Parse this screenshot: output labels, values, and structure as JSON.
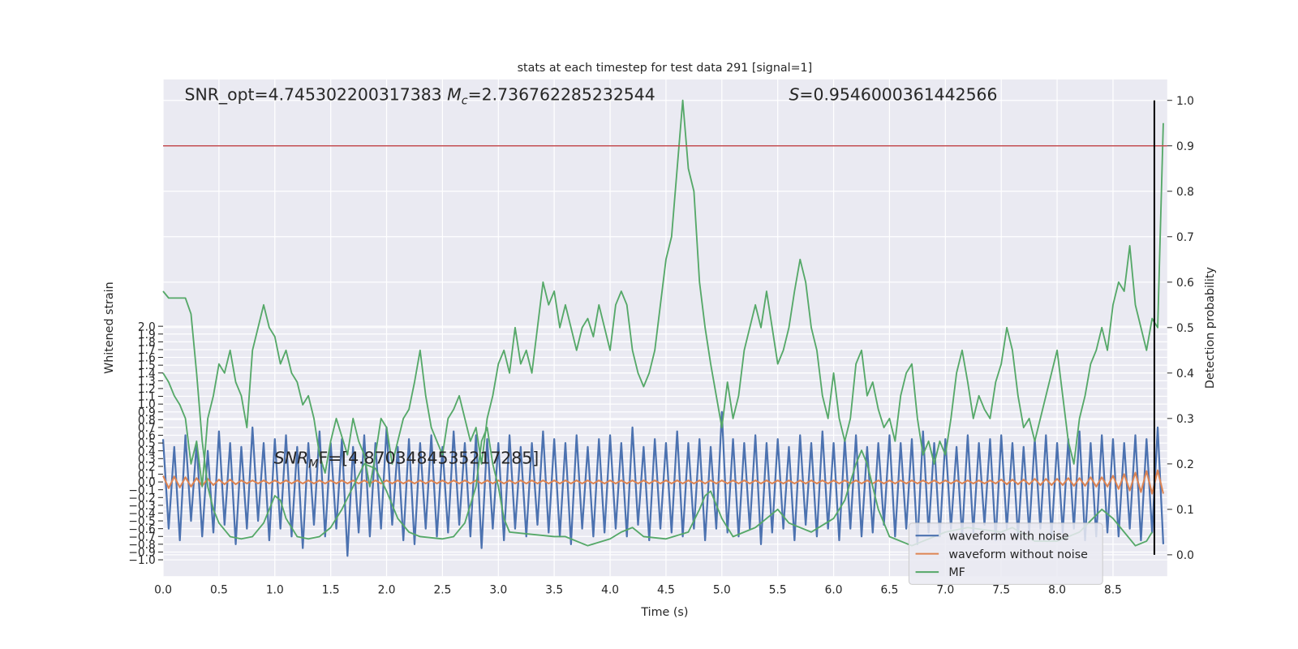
{
  "chart_data": {
    "type": "line",
    "title": "stats at each timestep for test data 291 [signal=1]",
    "xlabel": "Time (s)",
    "ylabel": "Whitened strain",
    "y2label": "Detection probability",
    "annotations": [
      [
        "SNR_opt=4.745302200317383 ",
        "M",
        "c",
        "=2.736762285232544"
      ],
      [
        "S",
        "=0.9546000361442566"
      ],
      [
        "SNR",
        "M",
        "F=[4.8703484535217285]"
      ]
    ],
    "grid": true,
    "legend": "lower right",
    "xlim": [
      0,
      8.985
    ],
    "ylim": [
      -1.21,
      5.17
    ],
    "y2lim": [
      -0.047,
      1.046
    ],
    "xticks": [
      {
        "value": 0,
        "label": "0.0"
      },
      0.5,
      {
        "value": 1,
        "label": "1.0"
      },
      1.5,
      {
        "value": 2,
        "label": "2.0"
      },
      2.5,
      {
        "value": 3,
        "label": "3.0"
      },
      3.5,
      {
        "value": 4,
        "label": "4.0"
      },
      4.5,
      {
        "value": 5,
        "label": "5.0"
      },
      5.5,
      {
        "value": 6,
        "label": "6.0"
      },
      6.5,
      {
        "value": 7,
        "label": "7.0"
      },
      7.5,
      {
        "value": 8,
        "label": "8.0"
      },
      8.5
    ],
    "yticks": [
      {
        "value": -1,
        "label": "−1.0"
      },
      {
        "value": -0.9,
        "label": "−0.9"
      },
      {
        "value": -0.8,
        "label": "−0.8"
      },
      {
        "value": -0.7,
        "label": "−0.7"
      },
      {
        "value": -0.6,
        "label": "−0.6"
      },
      {
        "value": -0.5,
        "label": "−0.5"
      },
      {
        "value": -0.4,
        "label": "−0.4"
      },
      {
        "value": -0.3,
        "label": "−0.3"
      },
      {
        "value": -0.2,
        "label": "−0.2"
      },
      {
        "value": -0.1,
        "label": "−0.1"
      },
      {
        "value": 0,
        "label": "0.0"
      },
      0.1,
      0.2,
      0.3,
      0.4,
      0.5,
      0.6,
      0.7,
      0.8,
      0.9,
      {
        "value": 1,
        "label": "1.0"
      },
      1.1,
      1.2,
      1.3,
      1.4,
      1.5,
      1.6,
      1.7,
      1.8,
      1.9,
      {
        "value": 2,
        "label": "2.0"
      }
    ],
    "y2ticks": [
      {
        "value": 0,
        "label": "0.0"
      },
      0.1,
      0.2,
      0.3,
      0.4,
      0.5,
      0.6,
      0.7,
      0.8,
      0.9,
      {
        "value": 1,
        "label": "1.0"
      }
    ],
    "threshold": {
      "value": 0.9,
      "axis": "y2",
      "color": "#c44e52"
    },
    "marker_line": {
      "x": 8.87,
      "ylim": [
        0,
        1
      ],
      "axis": "y2",
      "color": "#000000"
    },
    "x": [
      0,
      0.05,
      0.1,
      0.15,
      0.2,
      0.25,
      0.3,
      0.35,
      0.4,
      0.45,
      0.5,
      0.55,
      0.6,
      0.65,
      0.7,
      0.75,
      0.8,
      0.85,
      0.9,
      0.95,
      1,
      1.05,
      1.1,
      1.15,
      1.2,
      1.25,
      1.3,
      1.35,
      1.4,
      1.45,
      1.5,
      1.55,
      1.6,
      1.65,
      1.7,
      1.75,
      1.8,
      1.85,
      1.9,
      1.95,
      2,
      2.05,
      2.1,
      2.15,
      2.2,
      2.25,
      2.3,
      2.35,
      2.4,
      2.45,
      2.5,
      2.55,
      2.6,
      2.65,
      2.7,
      2.75,
      2.8,
      2.85,
      2.9,
      2.95,
      3,
      3.05,
      3.1,
      3.15,
      3.2,
      3.25,
      3.3,
      3.35,
      3.4,
      3.45,
      3.5,
      3.55,
      3.6,
      3.65,
      3.7,
      3.75,
      3.8,
      3.85,
      3.9,
      3.95,
      4,
      4.05,
      4.1,
      4.15,
      4.2,
      4.25,
      4.3,
      4.35,
      4.4,
      4.45,
      4.5,
      4.55,
      4.6,
      4.65,
      4.7,
      4.75,
      4.8,
      4.85,
      4.9,
      4.95,
      5,
      5.05,
      5.1,
      5.15,
      5.2,
      5.25,
      5.3,
      5.35,
      5.4,
      5.45,
      5.5,
      5.55,
      5.6,
      5.65,
      5.7,
      5.75,
      5.8,
      5.85,
      5.9,
      5.95,
      6,
      6.05,
      6.1,
      6.15,
      6.2,
      6.25,
      6.3,
      6.35,
      6.4,
      6.45,
      6.5,
      6.55,
      6.6,
      6.65,
      6.7,
      6.75,
      6.8,
      6.85,
      6.9,
      6.95,
      7,
      7.05,
      7.1,
      7.15,
      7.2,
      7.25,
      7.3,
      7.35,
      7.4,
      7.45,
      7.5,
      7.55,
      7.6,
      7.65,
      7.7,
      7.75,
      7.8,
      7.85,
      7.9,
      7.95,
      8,
      8.05,
      8.1,
      8.15,
      8.2,
      8.25,
      8.3,
      8.35,
      8.4,
      8.45,
      8.5,
      8.55,
      8.6,
      8.65,
      8.7,
      8.75,
      8.8,
      8.85,
      8.9,
      8.95
    ],
    "series": [
      {
        "name": "waveform with noise",
        "color": "#4c72b0",
        "width": 2.2,
        "values": [
          0.55,
          -0.6,
          0.45,
          -0.75,
          0.6,
          -0.5,
          0.5,
          -0.7,
          0.4,
          -0.65,
          0.65,
          -0.55,
          0.5,
          -0.8,
          0.45,
          -0.6,
          0.7,
          -0.5,
          0.5,
          -0.75,
          0.55,
          -0.6,
          0.6,
          -0.7,
          0.45,
          -0.85,
          0.5,
          -0.55,
          0.65,
          -0.7,
          0.5,
          -0.6,
          0.55,
          -0.95,
          0.45,
          -0.65,
          0.6,
          -0.7,
          0.5,
          -0.6,
          0.7,
          -0.55,
          0.45,
          -0.75,
          0.55,
          -0.8,
          0.5,
          -0.6,
          0.6,
          -0.7,
          0.45,
          -0.65,
          0.65,
          -0.55,
          0.5,
          -0.7,
          0.6,
          -0.85,
          0.55,
          -0.6,
          0.5,
          -0.75,
          0.6,
          -0.6,
          0.45,
          -0.7,
          0.5,
          -0.55,
          0.65,
          -0.65,
          0.55,
          -0.7,
          0.5,
          -0.8,
          0.6,
          -0.6,
          0.45,
          -0.7,
          0.55,
          -0.65,
          0.6,
          -0.6,
          0.5,
          -0.7,
          0.7,
          -0.55,
          0.45,
          -0.75,
          0.55,
          -0.6,
          0.5,
          -0.65,
          0.65,
          -0.7,
          0.5,
          -0.6,
          0.55,
          -0.75,
          0.45,
          -0.6,
          0.9,
          -0.65,
          0.55,
          -0.7,
          0.5,
          -0.6,
          0.6,
          -0.8,
          0.5,
          -0.65,
          0.55,
          -0.6,
          0.45,
          -0.75,
          0.6,
          -0.55,
          0.5,
          -0.7,
          0.65,
          -0.6,
          0.5,
          -0.75,
          0.55,
          -0.6,
          0.6,
          -0.7,
          0.45,
          -0.65,
          0.5,
          -0.55,
          0.6,
          -0.7,
          0.5,
          -0.6,
          0.55,
          -0.8,
          0.65,
          -0.65,
          0.5,
          -0.7,
          0.55,
          -0.6,
          0.45,
          -0.7,
          0.6,
          -0.65,
          0.5,
          -0.55,
          0.55,
          -0.75,
          0.6,
          -0.6,
          0.5,
          -0.7,
          0.45,
          -0.65,
          0.55,
          -0.6,
          0.6,
          -0.7,
          0.5,
          -0.65,
          0.55,
          -0.6,
          0.65,
          -0.75,
          0.5,
          -0.7,
          0.6,
          -0.65,
          0.55,
          -0.7,
          0.5,
          -0.6,
          0.6,
          -0.75,
          0.55,
          -0.65,
          0.7,
          -0.8
        ]
      },
      {
        "name": "waveform without noise",
        "color": "#dd8452",
        "width": 2,
        "values": [
          0.08,
          -0.08,
          0.07,
          -0.07,
          0.06,
          -0.06,
          0.05,
          -0.05,
          0.04,
          -0.04,
          0.03,
          -0.03,
          0.03,
          -0.03,
          0.02,
          -0.02,
          0.02,
          -0.02,
          0.02,
          -0.02,
          0.02,
          -0.02,
          0.02,
          -0.02,
          0.02,
          -0.02,
          0.02,
          -0.02,
          0.02,
          -0.02,
          0.02,
          -0.02,
          0.02,
          -0.02,
          0.02,
          -0.02,
          0.02,
          -0.02,
          0.02,
          -0.02,
          0.02,
          -0.02,
          0.02,
          -0.02,
          0.02,
          -0.02,
          0.02,
          -0.02,
          0.02,
          -0.02,
          0.02,
          -0.02,
          0.02,
          -0.02,
          0.02,
          -0.02,
          0.02,
          -0.02,
          0.02,
          -0.02,
          0.02,
          -0.02,
          0.02,
          -0.02,
          0.02,
          -0.02,
          0.02,
          -0.02,
          0.02,
          -0.02,
          0.02,
          -0.02,
          0.02,
          -0.02,
          0.02,
          -0.02,
          0.02,
          -0.02,
          0.02,
          -0.02,
          0.02,
          -0.02,
          0.02,
          -0.02,
          0.02,
          -0.02,
          0.02,
          -0.02,
          0.02,
          -0.02,
          0.02,
          -0.02,
          0.02,
          -0.02,
          0.02,
          -0.02,
          0.02,
          -0.02,
          0.02,
          -0.02,
          0.02,
          -0.02,
          0.02,
          -0.02,
          0.02,
          -0.02,
          0.02,
          -0.02,
          0.02,
          -0.02,
          0.02,
          -0.02,
          0.02,
          -0.02,
          0.02,
          -0.02,
          0.02,
          -0.02,
          0.02,
          -0.02,
          0.02,
          -0.02,
          0.02,
          -0.02,
          0.02,
          -0.02,
          0.02,
          -0.02,
          0.02,
          -0.02,
          0.02,
          -0.02,
          0.02,
          -0.02,
          0.02,
          -0.02,
          0.02,
          -0.02,
          0.02,
          -0.02,
          0.02,
          -0.02,
          0.02,
          -0.02,
          0.02,
          -0.02,
          0.02,
          -0.02,
          0.02,
          -0.02,
          0.03,
          -0.03,
          0.03,
          -0.03,
          0.03,
          -0.03,
          0.04,
          -0.04,
          0.04,
          -0.04,
          0.04,
          -0.04,
          0.05,
          -0.05,
          0.05,
          -0.05,
          0.06,
          -0.06,
          0.06,
          -0.06,
          0.08,
          -0.09,
          0.1,
          -0.11,
          0.12,
          -0.13,
          0.14,
          -0.15,
          0.15,
          -0.15
        ]
      },
      {
        "axis": "y2",
        "color": "#55a868",
        "width": 1.8,
        "values": [
          0.4,
          0.38,
          0.35,
          0.33,
          0.3,
          0.2,
          0.25,
          0.15,
          0.3,
          0.35,
          0.42,
          0.4,
          0.45,
          0.38,
          0.35,
          0.28,
          0.45,
          0.5,
          0.55,
          0.5,
          0.48,
          0.42,
          0.45,
          0.4,
          0.38,
          0.33,
          0.35,
          0.3,
          0.22,
          0.18,
          0.25,
          0.3,
          0.26,
          0.22,
          0.3,
          0.25,
          0.22,
          0.15,
          0.22,
          0.3,
          0.28,
          0.2,
          0.25,
          0.3,
          0.32,
          0.38,
          0.45,
          0.35,
          0.28,
          0.25,
          0.22,
          0.3,
          0.32,
          0.35,
          0.3,
          0.25,
          0.28,
          0.2,
          0.3,
          0.35,
          0.42,
          0.45,
          0.4,
          0.5,
          0.42,
          0.45,
          0.4,
          0.5,
          0.6,
          0.55,
          0.58,
          0.5,
          0.55,
          0.5,
          0.45,
          0.5,
          0.52,
          0.48,
          0.55,
          0.5,
          0.45,
          0.55,
          0.58,
          0.55,
          0.45,
          0.4,
          0.37,
          0.4,
          0.45,
          0.55,
          0.65,
          0.7,
          0.85,
          1.0,
          0.85,
          0.8,
          0.6,
          0.5,
          0.42,
          0.35,
          0.28,
          0.38,
          0.3,
          0.35,
          0.45,
          0.5,
          0.55,
          0.5,
          0.58,
          0.5,
          0.42,
          0.45,
          0.5,
          0.58,
          0.65,
          0.6,
          0.5,
          0.45,
          0.35,
          0.3,
          0.4,
          0.3,
          0.25,
          0.3,
          0.42,
          0.45,
          0.35,
          0.38,
          0.32,
          0.28,
          0.3,
          0.25,
          0.35,
          0.4,
          0.42,
          0.3,
          0.22,
          0.25,
          0.2,
          0.25,
          0.22,
          0.3,
          0.4,
          0.45,
          0.38,
          0.3,
          0.35,
          0.32,
          0.3,
          0.38,
          0.42,
          0.5,
          0.45,
          0.35,
          0.28,
          0.3,
          0.25,
          0.3,
          0.35,
          0.4,
          0.45,
          0.35,
          0.25,
          0.2,
          0.3,
          0.35,
          0.42,
          0.45,
          0.5,
          0.45,
          0.55,
          0.6,
          0.58,
          0.68,
          0.55,
          0.5,
          0.45,
          0.52,
          0.5,
          0.95
        ]
      },
      {
        "name": "MF",
        "axis": "y2",
        "color": "#55a868",
        "width": 1.8,
        "x": [
          0,
          0.05,
          0.2,
          0.25,
          0.3,
          0.35,
          0.4,
          0.45,
          0.5,
          0.6,
          0.7,
          0.8,
          0.9,
          0.95,
          1,
          1.05,
          1.1,
          1.2,
          1.3,
          1.4,
          1.5,
          1.6,
          1.7,
          1.8,
          1.9,
          2,
          2.1,
          2.2,
          2.3,
          2.5,
          2.6,
          2.7,
          2.8,
          2.85,
          2.9,
          2.95,
          3,
          3.05,
          3.1,
          3.3,
          3.5,
          3.6,
          3.8,
          4,
          4.1,
          4.2,
          4.3,
          4.5,
          4.7,
          4.8,
          4.85,
          4.9,
          5,
          5.1,
          5.3,
          5.5,
          5.6,
          5.8,
          6,
          6.1,
          6.2,
          6.25,
          6.3,
          6.4,
          6.5,
          6.7,
          6.9,
          7,
          7.2,
          7.5,
          7.6,
          7.8,
          8,
          8.2,
          8.4,
          8.5,
          8.6,
          8.7,
          8.8,
          8.85
        ],
        "values": [
          0.58,
          0.565,
          0.565,
          0.53,
          0.4,
          0.25,
          0.15,
          0.1,
          0.07,
          0.04,
          0.035,
          0.04,
          0.07,
          0.1,
          0.13,
          0.12,
          0.08,
          0.04,
          0.035,
          0.04,
          0.06,
          0.1,
          0.15,
          0.2,
          0.19,
          0.14,
          0.08,
          0.05,
          0.04,
          0.035,
          0.04,
          0.07,
          0.15,
          0.25,
          0.28,
          0.2,
          0.15,
          0.08,
          0.05,
          0.045,
          0.04,
          0.04,
          0.02,
          0.035,
          0.05,
          0.06,
          0.04,
          0.035,
          0.05,
          0.1,
          0.13,
          0.14,
          0.08,
          0.04,
          0.06,
          0.1,
          0.07,
          0.05,
          0.08,
          0.12,
          0.2,
          0.23,
          0.2,
          0.1,
          0.04,
          0.02,
          0.04,
          0.05,
          0.06,
          0.05,
          0.06,
          0.03,
          0.03,
          0.05,
          0.1,
          0.08,
          0.05,
          0.02,
          0.03,
          0.05
        ]
      }
    ]
  }
}
